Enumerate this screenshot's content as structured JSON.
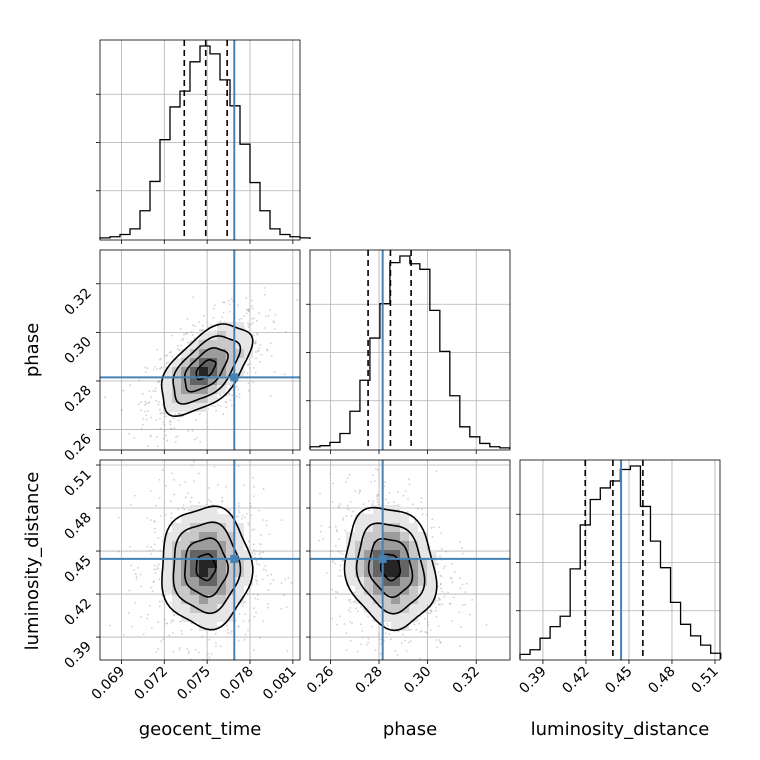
{
  "chart_data": {
    "type": "corner",
    "parameters": [
      "geocent_time",
      "phase",
      "luminosity_distance"
    ],
    "truths": {
      "geocent_time": 0.0769,
      "phase": 0.2815,
      "luminosity_distance": 0.4445
    },
    "truth_color": "#4682b4",
    "quantile_lines": {
      "geocent_time": [
        0.0734,
        0.0749,
        0.0764
      ],
      "phase": [
        0.2755,
        0.2847,
        0.2932
      ],
      "luminosity_distance": [
        0.4195,
        0.4388,
        0.4597
      ]
    },
    "axes": {
      "geocent_time": {
        "range": [
          0.0675,
          0.0815
        ],
        "ticks": [
          "0.069",
          "0.072",
          "0.075",
          "0.078",
          "0.081"
        ],
        "tick_values": [
          0.069,
          0.072,
          0.075,
          0.078,
          0.081
        ]
      },
      "phase": {
        "range": [
          0.2516,
          0.3339
        ],
        "ticks": [
          "0.26",
          "0.28",
          "0.30",
          "0.32"
        ],
        "tick_values": [
          0.26,
          0.28,
          0.3,
          0.32
        ]
      },
      "luminosity_distance": {
        "range": [
          0.374,
          0.5135
        ],
        "ticks": [
          "0.39",
          "0.42",
          "0.45",
          "0.48",
          "0.51"
        ],
        "tick_values": [
          0.39,
          0.42,
          0.45,
          0.48,
          0.51
        ]
      }
    },
    "histograms": {
      "geocent_time": {
        "bin_start": 0.0675,
        "bin_width": 0.0007,
        "counts": [
          1,
          2,
          4,
          9,
          25,
          51,
          88,
          117,
          131,
          157,
          171,
          164,
          141,
          118,
          84,
          50,
          25,
          9,
          4,
          2,
          1
        ]
      },
      "phase": {
        "bin_start": 0.2516,
        "bin_width": 0.00411,
        "counts": [
          2,
          3,
          6,
          14,
          34,
          62,
          100,
          131,
          168,
          174,
          167,
          162,
          125,
          88,
          48,
          20,
          11,
          5,
          2,
          1
        ]
      },
      "luminosity_distance": {
        "bin_start": 0.374,
        "bin_width": 0.007,
        "counts": [
          4,
          8,
          18,
          28,
          37,
          78,
          116,
          138,
          148,
          154,
          164,
          167,
          132,
          102,
          79,
          49,
          30,
          20,
          12,
          5
        ]
      }
    },
    "xlabel": [
      "geocent_time",
      "phase",
      "luminosity_distance"
    ],
    "ylabel": [
      "phase",
      "luminosity_distance"
    ],
    "grid": true
  }
}
